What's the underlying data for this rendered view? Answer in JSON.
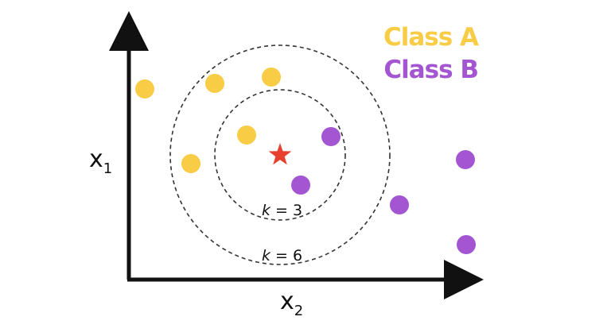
{
  "axes": {
    "y_label": "x",
    "y_sub": "1",
    "x_label": "x",
    "x_sub": "2"
  },
  "legend": [
    {
      "label": "Class A",
      "color": "#F8CC45"
    },
    {
      "label": "Class B",
      "color": "#A456D2"
    }
  ],
  "query": {
    "icon": "star-icon",
    "color": "#E8402F"
  },
  "rings": [
    {
      "k_symbol": "k",
      "k_value": " = 3"
    },
    {
      "k_symbol": "k",
      "k_value": " = 6"
    }
  ],
  "colors": {
    "axis": "#111111",
    "ring": "#333333"
  }
}
